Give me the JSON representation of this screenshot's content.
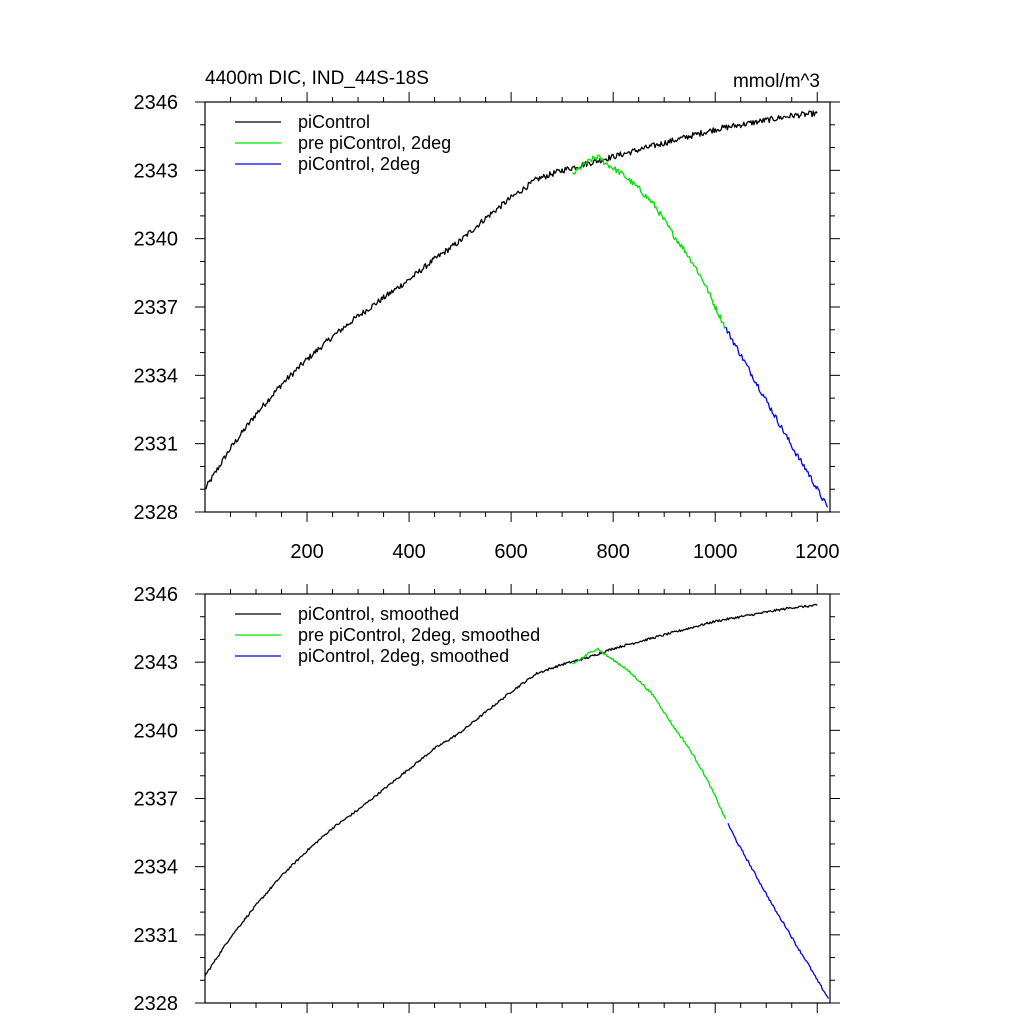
{
  "chart_data": [
    {
      "type": "line",
      "title": "4400m DIC, IND_44S-18S",
      "units": "mmol/m^3",
      "xlabel": "",
      "ylabel": "",
      "xlim": [
        0,
        1225
      ],
      "ylim": [
        2328,
        2346
      ],
      "yticks": [
        2328,
        2331,
        2334,
        2337,
        2340,
        2343,
        2346
      ],
      "yticklabels": [
        "2328",
        "2331",
        "2334",
        "2337",
        "2340",
        "2343",
        "2346"
      ],
      "xticks": [
        200,
        400,
        600,
        800,
        1000,
        1200
      ],
      "xticklabels": [
        "200",
        "400",
        "600",
        "800",
        "1000",
        "1200"
      ],
      "legend_position": "top-left",
      "series": [
        {
          "name": "piControl",
          "color": "#000000",
          "x": [
            0,
            50,
            100,
            150,
            200,
            250,
            300,
            350,
            400,
            450,
            500,
            550,
            600,
            650,
            700,
            750,
            800,
            850,
            900,
            950,
            1000,
            1050,
            1100,
            1150,
            1200
          ],
          "y": [
            2329.0,
            2330.8,
            2332.3,
            2333.6,
            2334.7,
            2335.7,
            2336.6,
            2337.4,
            2338.2,
            2339.1,
            2339.9,
            2340.9,
            2341.8,
            2342.6,
            2343.0,
            2343.3,
            2343.6,
            2343.9,
            2344.2,
            2344.5,
            2344.8,
            2345.0,
            2345.2,
            2345.4,
            2345.5
          ]
        },
        {
          "name": "pre piControl, 2deg",
          "color": "#00e000",
          "x": [
            720,
            740,
            760,
            770,
            780,
            800,
            820,
            850,
            880,
            900,
            920,
            940,
            960,
            980,
            1000,
            1020
          ],
          "y": [
            2342.8,
            2343.2,
            2343.5,
            2343.6,
            2343.4,
            2343.1,
            2342.8,
            2342.2,
            2341.5,
            2340.8,
            2340.1,
            2339.5,
            2338.8,
            2338.0,
            2337.0,
            2336.1
          ]
        },
        {
          "name": "piControl, 2deg",
          "color": "#0000ff",
          "x": [
            1020,
            1040,
            1060,
            1080,
            1100,
            1120,
            1140,
            1160,
            1180,
            1200,
            1220
          ],
          "y": [
            2336.1,
            2335.3,
            2334.5,
            2333.7,
            2332.9,
            2332.1,
            2331.3,
            2330.5,
            2329.8,
            2329.0,
            2328.2
          ]
        }
      ]
    },
    {
      "type": "line",
      "title": "",
      "xlabel": "",
      "ylabel": "",
      "xlim": [
        0,
        1225
      ],
      "ylim": [
        2328,
        2346
      ],
      "yticks": [
        2328,
        2331,
        2334,
        2337,
        2340,
        2343,
        2346
      ],
      "yticklabels": [
        "2328",
        "2331",
        "2334",
        "2337",
        "2340",
        "2343",
        "2346"
      ],
      "xticks": [
        200,
        400,
        600,
        800,
        1000,
        1200
      ],
      "legend_position": "top-left",
      "series": [
        {
          "name": "piControl, smoothed",
          "color": "#000000",
          "x": [
            0,
            50,
            100,
            150,
            200,
            250,
            300,
            350,
            400,
            450,
            500,
            550,
            600,
            650,
            700,
            750,
            800,
            850,
            900,
            950,
            1000,
            1050,
            1100,
            1150,
            1200
          ],
          "y": [
            2329.2,
            2330.9,
            2332.3,
            2333.6,
            2334.7,
            2335.7,
            2336.5,
            2337.4,
            2338.3,
            2339.2,
            2339.9,
            2340.8,
            2341.7,
            2342.5,
            2342.9,
            2343.2,
            2343.6,
            2343.9,
            2344.2,
            2344.5,
            2344.8,
            2345.0,
            2345.2,
            2345.4,
            2345.5
          ]
        },
        {
          "name": "pre piControl, 2deg, smoothed",
          "color": "#00e000",
          "x": [
            720,
            740,
            760,
            770,
            780,
            800,
            820,
            850,
            880,
            900,
            920,
            940,
            960,
            980,
            1000,
            1020
          ],
          "y": [
            2342.9,
            2343.2,
            2343.5,
            2343.6,
            2343.4,
            2343.1,
            2342.8,
            2342.2,
            2341.5,
            2340.8,
            2340.1,
            2339.5,
            2338.8,
            2338.0,
            2337.1,
            2336.1
          ]
        },
        {
          "name": "piControl, 2deg, smoothed",
          "color": "#0000ff",
          "x": [
            1025,
            1040,
            1060,
            1080,
            1100,
            1120,
            1140,
            1160,
            1180,
            1200,
            1222
          ],
          "y": [
            2335.9,
            2335.2,
            2334.4,
            2333.6,
            2332.8,
            2332.0,
            2331.3,
            2330.5,
            2329.8,
            2329.0,
            2328.2
          ]
        }
      ]
    }
  ]
}
